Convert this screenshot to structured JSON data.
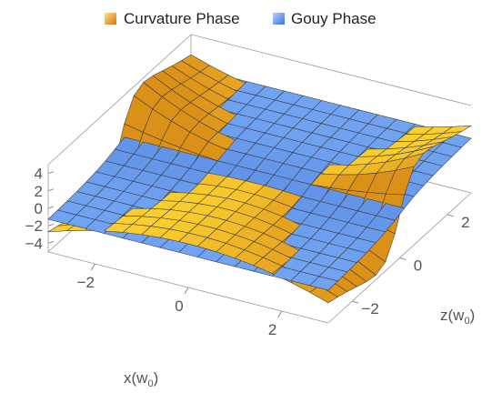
{
  "chart_data": {
    "type": "surface3d",
    "legend": [
      {
        "label": "Curvature Phase",
        "color": "#f5a623"
      },
      {
        "label": "Gouy Phase",
        "color": "#6f9cf2"
      }
    ],
    "legend_position": "top",
    "series": [
      {
        "name": "Curvature Phase",
        "function": "z*x^2/(1+z^2)"
      },
      {
        "name": "Gouy Phase",
        "function": "arctan(z)"
      }
    ],
    "x_axis": {
      "label": "x",
      "unit": "w",
      "unit_sub": "0",
      "range": [
        -3,
        3
      ],
      "ticks": [
        -2,
        0,
        2
      ]
    },
    "z_axis": {
      "label": "z",
      "unit": "w",
      "unit_sub": "0",
      "range": [
        -3,
        3
      ],
      "ticks": [
        -2,
        0,
        2
      ]
    },
    "vertical_axis": {
      "label": "",
      "range": [
        -5,
        5
      ],
      "ticks": [
        4,
        2,
        0,
        -2,
        -4
      ]
    },
    "mesh": 15,
    "box": true
  }
}
